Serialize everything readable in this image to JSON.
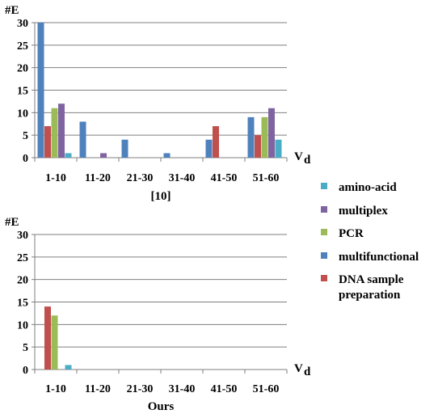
{
  "legend": [
    {
      "name": "amino-acid",
      "color": "#4BACC6"
    },
    {
      "name": "multiplex",
      "color": "#8064A2"
    },
    {
      "name": "PCR",
      "color": "#9BBB59"
    },
    {
      "name": "multifunctional",
      "color": "#4F81BD"
    },
    {
      "name": "DNA sample\npreparation",
      "color": "#C0504D"
    }
  ],
  "chart_data": [
    {
      "type": "bar",
      "title": "",
      "caption": "[10]",
      "ylabel": "#E",
      "xlabel_main": "V",
      "xlabel_sub": "d",
      "categories": [
        "1-10",
        "11-20",
        "21-30",
        "31-40",
        "41-50",
        "51-60"
      ],
      "ylim": [
        0,
        30
      ],
      "yticks": [
        0,
        5,
        10,
        15,
        20,
        25,
        30
      ],
      "grid": true,
      "series": [
        {
          "name": "multifunctional",
          "values": [
            30,
            8,
            4,
            1,
            4,
            9
          ]
        },
        {
          "name": "DNA sample\npreparation",
          "values": [
            7,
            0,
            0,
            0,
            7,
            5
          ]
        },
        {
          "name": "PCR",
          "values": [
            11,
            0,
            0,
            0,
            0,
            9
          ]
        },
        {
          "name": "multiplex",
          "values": [
            12,
            1,
            0,
            0,
            0,
            11
          ]
        },
        {
          "name": "amino-acid",
          "values": [
            1,
            0,
            0,
            0,
            0,
            4
          ]
        }
      ]
    },
    {
      "type": "bar",
      "title": "",
      "caption": "Ours",
      "ylabel": "#E",
      "xlabel_main": "V",
      "xlabel_sub": "d",
      "categories": [
        "1-10",
        "11-20",
        "21-30",
        "31-40",
        "41-50",
        "51-60"
      ],
      "ylim": [
        0,
        30
      ],
      "yticks": [
        0,
        5,
        10,
        15,
        20,
        25,
        30
      ],
      "grid": true,
      "series": [
        {
          "name": "multifunctional",
          "values": [
            0,
            0,
            0,
            0,
            0,
            0
          ]
        },
        {
          "name": "DNA sample\npreparation",
          "values": [
            14,
            0,
            0,
            0,
            0,
            0
          ]
        },
        {
          "name": "PCR",
          "values": [
            12,
            0,
            0,
            0,
            0,
            0
          ]
        },
        {
          "name": "multiplex",
          "values": [
            0,
            0,
            0,
            0,
            0,
            0
          ]
        },
        {
          "name": "amino-acid",
          "values": [
            1,
            0,
            0,
            0,
            0,
            0
          ]
        }
      ]
    }
  ]
}
